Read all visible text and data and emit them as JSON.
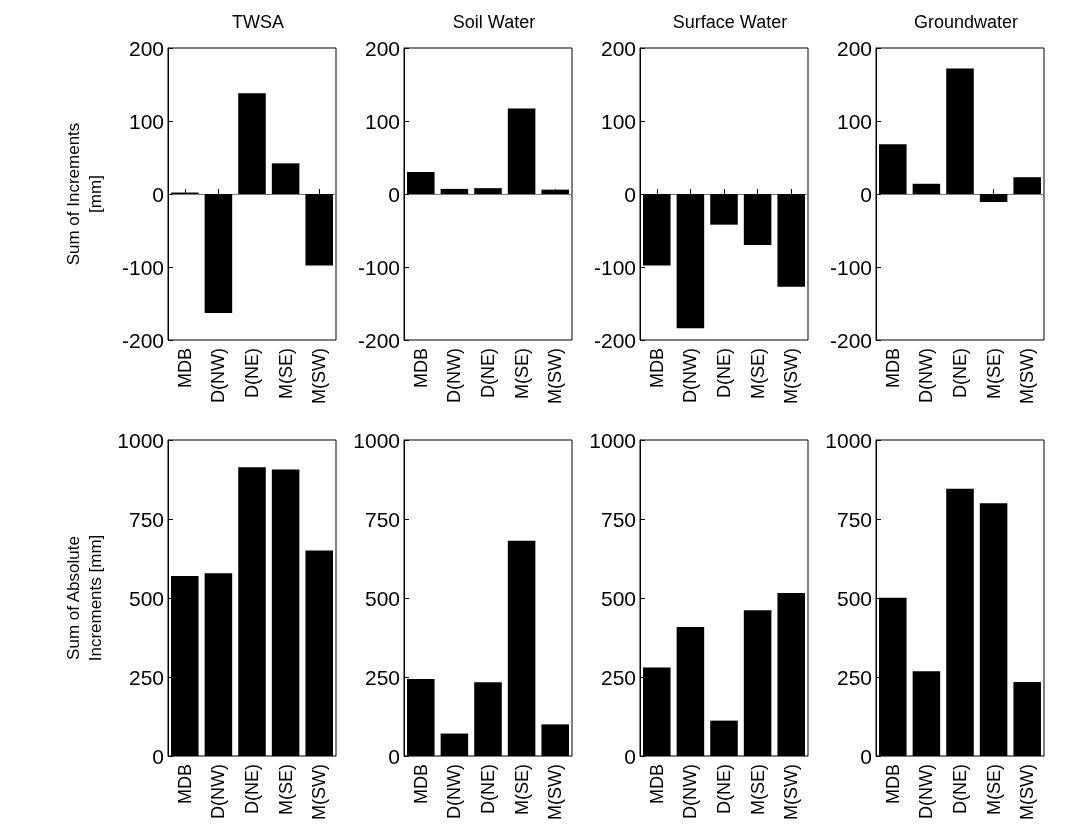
{
  "chart_data": [
    {
      "type": "bar",
      "title": "TWSA",
      "ylabel": "Sum of Increments\n[mm]",
      "categories": [
        "MDB",
        "D(NW)",
        "D(NE)",
        "M(SE)",
        "M(SW)"
      ],
      "values": [
        2,
        -163,
        138,
        42,
        -98
      ],
      "color": "#000000",
      "ylim": [
        -200,
        200
      ],
      "yticks": [
        -200,
        -100,
        0,
        100,
        200
      ]
    },
    {
      "type": "bar",
      "title": "Soil Water",
      "categories": [
        "MDB",
        "D(NW)",
        "D(NE)",
        "M(SE)",
        "M(SW)"
      ],
      "values": [
        30,
        7,
        8,
        117,
        6
      ],
      "color": "#000000",
      "ylim": [
        -200,
        200
      ],
      "yticks": [
        -200,
        -100,
        0,
        100,
        200
      ]
    },
    {
      "type": "bar",
      "title": "Surface Water",
      "categories": [
        "MDB",
        "D(NW)",
        "D(NE)",
        "M(SE)",
        "M(SW)"
      ],
      "values": [
        -98,
        -184,
        -42,
        -70,
        -127
      ],
      "color": "#000000",
      "ylim": [
        -200,
        200
      ],
      "yticks": [
        -200,
        -100,
        0,
        100,
        200
      ]
    },
    {
      "type": "bar",
      "title": "Groundwater",
      "categories": [
        "MDB",
        "D(NW)",
        "D(NE)",
        "M(SE)",
        "M(SW)"
      ],
      "values": [
        68,
        14,
        172,
        -11,
        23
      ],
      "color": "#000000",
      "ylim": [
        -200,
        200
      ],
      "yticks": [
        -200,
        -100,
        0,
        100,
        200
      ]
    },
    {
      "type": "bar",
      "ylabel": "Sum of Absolute\nIncrements [mm]",
      "categories": [
        "MDB",
        "D(NW)",
        "D(NE)",
        "M(SE)",
        "M(SW)"
      ],
      "values": [
        570,
        578,
        914,
        907,
        650
      ],
      "color": "#000000",
      "ylim": [
        0,
        1000
      ],
      "yticks": [
        0,
        250,
        500,
        750,
        1000
      ]
    },
    {
      "type": "bar",
      "categories": [
        "MDB",
        "D(NW)",
        "D(NE)",
        "M(SE)",
        "M(SW)"
      ],
      "values": [
        244,
        71,
        233,
        681,
        100
      ],
      "color": "#000000",
      "ylim": [
        0,
        1000
      ],
      "yticks": [
        0,
        250,
        500,
        750,
        1000
      ]
    },
    {
      "type": "bar",
      "categories": [
        "MDB",
        "D(NW)",
        "D(NE)",
        "M(SE)",
        "M(SW)"
      ],
      "values": [
        280,
        408,
        112,
        461,
        516
      ],
      "color": "#000000",
      "ylim": [
        0,
        1000
      ],
      "yticks": [
        0,
        250,
        500,
        750,
        1000
      ]
    },
    {
      "type": "bar",
      "categories": [
        "MDB",
        "D(NW)",
        "D(NE)",
        "M(SE)",
        "M(SW)"
      ],
      "values": [
        501,
        268,
        846,
        800,
        234
      ],
      "color": "#000000",
      "ylim": [
        0,
        1000
      ],
      "yticks": [
        0,
        250,
        500,
        750,
        1000
      ]
    }
  ]
}
